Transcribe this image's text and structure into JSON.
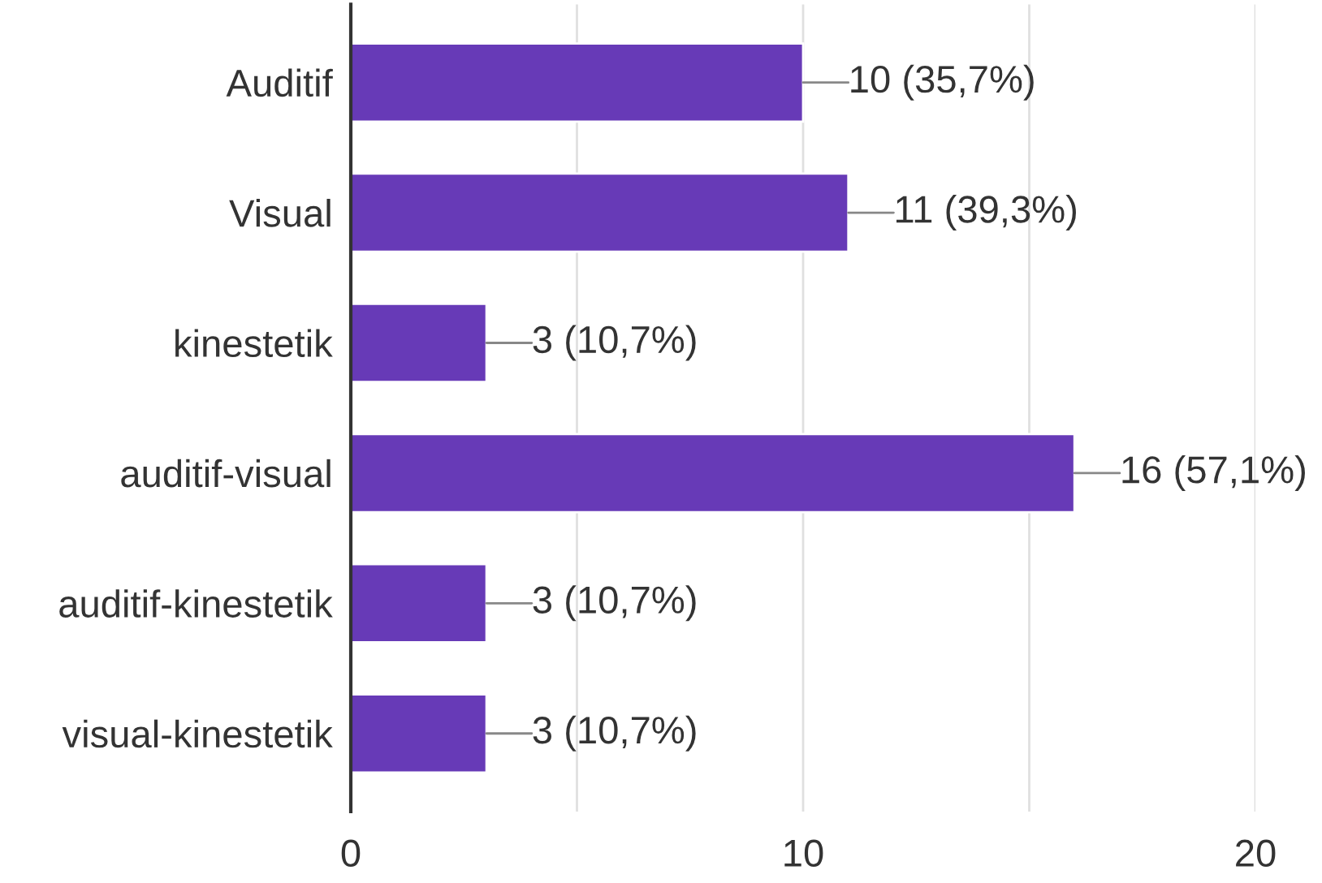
{
  "chart_data": {
    "type": "bar",
    "orientation": "horizontal",
    "categories": [
      "Auditif",
      "Visual",
      "kinestetik",
      "auditif-visual",
      "auditif-kinestetik",
      "visual-kinestetik"
    ],
    "values": [
      10,
      11,
      3,
      16,
      3,
      3
    ],
    "value_labels": [
      "10 (35,7%)",
      "11 (39,3%)",
      "3 (10,7%)",
      "16 (57,1%)",
      "3 (10,7%)",
      "3 (10,7%)"
    ],
    "color": "#673ab7",
    "xlim": [
      0,
      20
    ],
    "xticks": [
      0,
      {
        "value": 5,
        "label": null
      },
      10,
      {
        "value": 15,
        "label": null
      },
      20
    ],
    "grid": "x"
  }
}
